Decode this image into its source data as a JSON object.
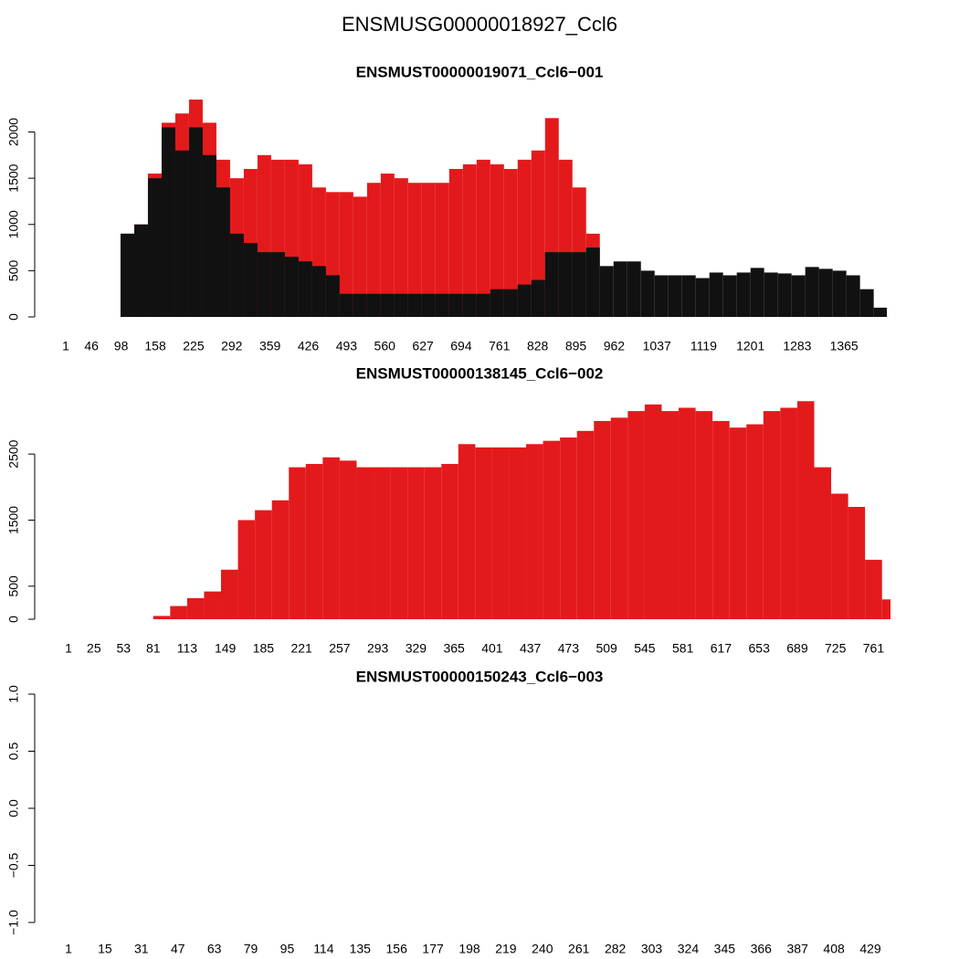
{
  "title": "ENSMUSG00000018927_Ccl6",
  "chart_data": [
    {
      "type": "bar",
      "title": "ENSMUST00000019071_Ccl6−001",
      "x": [
        1,
        25,
        49,
        73,
        97,
        121,
        145,
        169,
        193,
        217,
        241,
        265,
        289,
        313,
        337,
        361,
        385,
        409,
        433,
        457,
        481,
        505,
        529,
        553,
        577,
        601,
        625,
        649,
        673,
        697,
        721,
        745,
        769,
        793,
        817,
        841,
        865,
        889,
        913,
        937,
        961,
        985,
        1009,
        1033,
        1057,
        1081,
        1105,
        1129,
        1153,
        1177,
        1201,
        1225,
        1249,
        1273,
        1297,
        1321,
        1345,
        1369,
        1393,
        1417
      ],
      "series": [
        {
          "color": "#e31a1c",
          "values": [
            0,
            0,
            0,
            0,
            900,
            1000,
            1550,
            2100,
            2200,
            2350,
            2100,
            1700,
            1500,
            1600,
            1750,
            1700,
            1700,
            1650,
            1400,
            1350,
            1350,
            1300,
            1450,
            1550,
            1500,
            1450,
            1450,
            1450,
            1600,
            1650,
            1700,
            1650,
            1600,
            1700,
            1800,
            2150,
            1700,
            1400,
            900,
            0,
            0,
            0,
            0,
            0,
            0,
            0,
            0,
            0,
            0,
            0,
            0,
            0,
            0,
            0,
            0,
            0,
            0,
            0,
            0,
            0
          ]
        },
        {
          "color": "#111111",
          "values": [
            0,
            0,
            0,
            0,
            900,
            1000,
            1500,
            2050,
            1800,
            2050,
            1750,
            1400,
            900,
            800,
            700,
            700,
            650,
            600,
            550,
            450,
            250,
            250,
            250,
            250,
            250,
            250,
            250,
            250,
            250,
            250,
            250,
            300,
            300,
            350,
            400,
            700,
            700,
            700,
            750,
            550,
            600,
            600,
            500,
            450,
            450,
            450,
            420,
            480,
            450,
            480,
            530,
            480,
            470,
            450,
            540,
            520,
            500,
            450,
            300,
            100
          ]
        }
      ],
      "xlim": [
        1,
        1440
      ],
      "xticks": [
        1,
        46,
        98,
        158,
        225,
        292,
        359,
        426,
        493,
        560,
        627,
        694,
        761,
        828,
        895,
        962,
        1037,
        1119,
        1201,
        1283,
        1365
      ],
      "ylim": [
        0,
        2400
      ],
      "yticks": [
        0,
        500,
        1000,
        1500,
        2000
      ]
    },
    {
      "type": "bar",
      "title": "ENSMUST00000138145_Ccl6−002",
      "x": [
        1,
        17,
        33,
        49,
        65,
        81,
        97,
        113,
        129,
        145,
        161,
        177,
        193,
        209,
        225,
        241,
        257,
        273,
        289,
        305,
        321,
        337,
        353,
        369,
        385,
        401,
        417,
        433,
        449,
        465,
        481,
        497,
        513,
        529,
        545,
        561,
        577,
        593,
        609,
        625,
        641,
        657,
        673,
        689,
        705,
        721,
        737,
        753,
        769
      ],
      "series": [
        {
          "color": "#e31a1c",
          "values": [
            0,
            0,
            0,
            0,
            0,
            50,
            200,
            320,
            420,
            750,
            1500,
            1650,
            1800,
            2300,
            2350,
            2450,
            2400,
            2300,
            2300,
            2300,
            2300,
            2300,
            2350,
            2650,
            2600,
            2600,
            2600,
            2650,
            2700,
            2750,
            2850,
            3000,
            3050,
            3150,
            3250,
            3150,
            3200,
            3150,
            3000,
            2900,
            2950,
            3150,
            3200,
            3300,
            2300,
            1900,
            1700,
            900,
            300
          ]
        }
      ],
      "xlim": [
        1,
        777
      ],
      "xticks": [
        1,
        25,
        53,
        81,
        113,
        149,
        185,
        221,
        257,
        293,
        329,
        365,
        401,
        437,
        473,
        509,
        545,
        581,
        617,
        653,
        689,
        725,
        761
      ],
      "ylim": [
        0,
        3400
      ],
      "yticks": [
        0,
        500,
        1500,
        2500
      ]
    },
    {
      "type": "empty",
      "title": "ENSMUST00000150243_Ccl6−003",
      "categories": [
        "1",
        "15",
        "31",
        "47",
        "63",
        "79",
        "95",
        "114",
        "135",
        "156",
        "177",
        "198",
        "219",
        "240",
        "261",
        "282",
        "303",
        "324",
        "345",
        "366",
        "387",
        "408",
        "429"
      ],
      "ylim": [
        -1,
        1
      ],
      "yticks": [
        {
          "value": -1,
          "label": "−1.0"
        },
        {
          "value": -0.5,
          "label": "−0.5"
        },
        {
          "value": 0,
          "label": "0.0"
        },
        0.5,
        {
          "value": 1,
          "label": "1.0"
        }
      ]
    }
  ]
}
